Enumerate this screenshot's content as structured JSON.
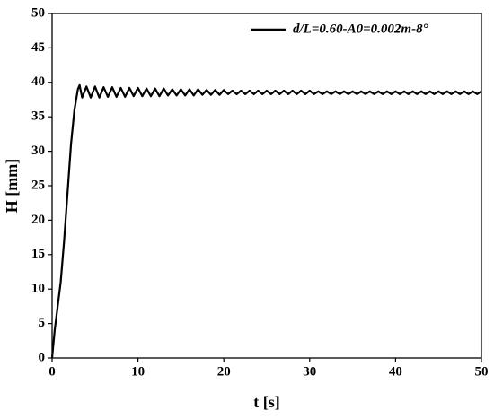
{
  "chart_data": {
    "type": "line",
    "xlabel": "t [s]",
    "ylabel": "H [mm]",
    "xlim": [
      0,
      50
    ],
    "xticks": [
      0,
      10,
      20,
      30,
      40,
      50
    ],
    "ylim": [
      0,
      50
    ],
    "yticks": [
      0,
      5,
      10,
      15,
      20,
      25,
      30,
      35,
      40,
      45,
      50
    ],
    "legend": "upper right",
    "x": [
      0,
      0.3,
      0.6,
      1,
      1.4,
      1.8,
      2.2,
      2.6,
      3,
      3.2,
      3.5,
      4,
      4.5,
      5,
      5.5,
      6,
      6.5,
      7,
      7.5,
      8,
      8.5,
      9,
      9.5,
      10,
      10.5,
      11,
      11.5,
      12,
      12.5,
      13,
      13.5,
      14,
      14.5,
      15,
      15.5,
      16,
      16.5,
      17,
      17.5,
      18,
      18.5,
      19,
      19.5,
      20,
      20.5,
      21,
      21.5,
      22,
      22.5,
      23,
      23.5,
      24,
      24.5,
      25,
      25.5,
      26,
      26.5,
      27,
      27.5,
      28,
      28.5,
      29,
      29.5,
      30,
      30.5,
      31,
      31.5,
      32,
      32.5,
      33,
      33.5,
      34,
      34.5,
      35,
      35.5,
      36,
      36.5,
      37,
      37.5,
      38,
      38.5,
      39,
      39.5,
      40,
      40.5,
      41,
      41.5,
      42,
      42.5,
      43,
      43.5,
      44,
      44.5,
      45,
      45.5,
      46,
      46.5,
      47,
      47.5,
      48,
      48.5,
      49,
      49.5,
      50
    ],
    "series": [
      {
        "name": "d/L=0.60-A0=0.002m-8°",
        "color": "#000000",
        "values": [
          0,
          4,
          7,
          11,
          17,
          24,
          31,
          36,
          39,
          39.6,
          37.8,
          39.4,
          37.8,
          39.4,
          37.8,
          39.3,
          37.9,
          39.3,
          37.9,
          39.2,
          37.9,
          39.2,
          38,
          39.2,
          38,
          39.1,
          38,
          39.1,
          38,
          39.1,
          38.1,
          39,
          38.1,
          39,
          38.1,
          39,
          38.1,
          39,
          38.2,
          38.9,
          38.2,
          38.9,
          38.2,
          38.9,
          38.3,
          38.8,
          38.3,
          38.8,
          38.3,
          38.8,
          38.3,
          38.8,
          38.3,
          38.8,
          38.3,
          38.8,
          38.3,
          38.8,
          38.3,
          38.8,
          38.3,
          38.8,
          38.3,
          38.8,
          38.3,
          38.7,
          38.3,
          38.7,
          38.3,
          38.7,
          38.3,
          38.7,
          38.3,
          38.7,
          38.3,
          38.7,
          38.3,
          38.7,
          38.3,
          38.7,
          38.3,
          38.7,
          38.3,
          38.7,
          38.3,
          38.7,
          38.3,
          38.7,
          38.3,
          38.7,
          38.3,
          38.7,
          38.3,
          38.7,
          38.3,
          38.7,
          38.3,
          38.7,
          38.3,
          38.7,
          38.3,
          38.7,
          38.3,
          38.7
        ]
      }
    ]
  }
}
